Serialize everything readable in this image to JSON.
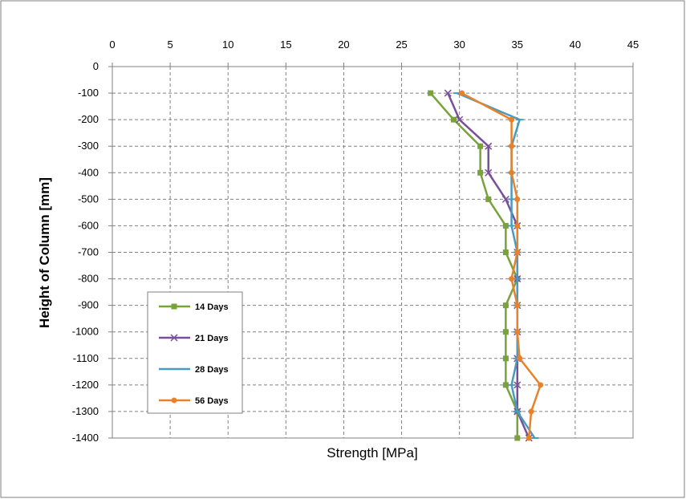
{
  "chart_data": {
    "type": "line",
    "title": "",
    "xlabel": "Strength [MPa]",
    "ylabel": "Height of Column [mm]",
    "xlim": [
      0,
      45
    ],
    "ylim": [
      -1400,
      0
    ],
    "x_ticks": [
      "0",
      "5",
      "10",
      "15",
      "20",
      "25",
      "30",
      "35",
      "40",
      "45"
    ],
    "y_ticks": [
      "0",
      "-100",
      "-200",
      "-300",
      "-400",
      "-500",
      "-600",
      "-700",
      "-800",
      "-900",
      "-1000",
      "-1100",
      "-1200",
      "-1300",
      "-1400"
    ],
    "x_axis_position": "top",
    "grid": true,
    "legend_position": "lower-left",
    "series": [
      {
        "name": "14 Days",
        "color": "#77A33A",
        "marker": "square",
        "points": [
          [
            27.5,
            -100
          ],
          [
            29.5,
            -200
          ],
          [
            31.8,
            -300
          ],
          [
            31.8,
            -400
          ],
          [
            32.5,
            -500
          ],
          [
            34,
            -600
          ],
          [
            34,
            -700
          ],
          [
            35,
            -800
          ],
          [
            34,
            -900
          ],
          [
            34,
            -1000
          ],
          [
            34,
            -1100
          ],
          [
            34,
            -1200
          ],
          [
            35,
            -1300
          ],
          [
            35,
            -1400
          ]
        ]
      },
      {
        "name": "21 Days",
        "color": "#7A4F9A",
        "marker": "x",
        "points": [
          [
            29,
            -100
          ],
          [
            30,
            -200
          ],
          [
            32.5,
            -300
          ],
          [
            32.5,
            -400
          ],
          [
            34,
            -500
          ],
          [
            35,
            -600
          ],
          [
            35,
            -700
          ],
          [
            35,
            -800
          ],
          [
            35,
            -900
          ],
          [
            35,
            -1000
          ],
          [
            35,
            -1100
          ],
          [
            35,
            -1200
          ],
          [
            35,
            -1300
          ],
          [
            36,
            -1400
          ]
        ]
      },
      {
        "name": "28 Days",
        "color": "#4A9BBF",
        "marker": "dash",
        "points": [
          [
            29.8,
            -100
          ],
          [
            35.2,
            -200
          ],
          [
            34.5,
            -300
          ],
          [
            34.5,
            -400
          ],
          [
            34.5,
            -500
          ],
          [
            34.5,
            -600
          ],
          [
            35,
            -700
          ],
          [
            35,
            -800
          ],
          [
            35,
            -900
          ],
          [
            35,
            -1000
          ],
          [
            35,
            -1100
          ],
          [
            34.5,
            -1200
          ],
          [
            35,
            -1300
          ],
          [
            36.5,
            -1400
          ]
        ]
      },
      {
        "name": "56 Days",
        "color": "#E8822A",
        "marker": "circle",
        "points": [
          [
            30.2,
            -100
          ],
          [
            34.5,
            -200
          ],
          [
            34.5,
            -300
          ],
          [
            34.5,
            -400
          ],
          [
            35,
            -500
          ],
          [
            35,
            -600
          ],
          [
            35,
            -700
          ],
          [
            34.5,
            -800
          ],
          [
            35,
            -900
          ],
          [
            35,
            -1000
          ],
          [
            35.2,
            -1100
          ],
          [
            37,
            -1200
          ],
          [
            36.2,
            -1300
          ],
          [
            36,
            -1400
          ]
        ]
      }
    ]
  }
}
